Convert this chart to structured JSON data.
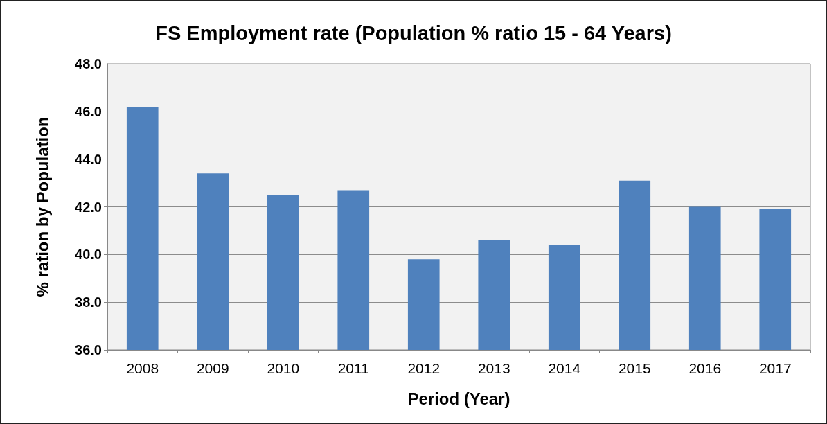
{
  "chart_data": {
    "type": "bar",
    "title": "FS Employment rate (Population % ratio 15 - 64 Years)",
    "xlabel": "Period (Year)",
    "ylabel": "% ration by Population",
    "categories": [
      "2008",
      "2009",
      "2010",
      "2011",
      "2012",
      "2013",
      "2014",
      "2015",
      "2016",
      "2017"
    ],
    "values": [
      46.2,
      43.4,
      42.5,
      42.7,
      39.8,
      40.6,
      40.4,
      43.1,
      42.0,
      41.9
    ],
    "color": "#4f81bd",
    "ylim": [
      36,
      48
    ],
    "yticks": [
      {
        "value": 36,
        "label": "36.0"
      },
      {
        "value": 38,
        "label": "38.0"
      },
      {
        "value": 40,
        "label": "40.0"
      },
      {
        "value": 42,
        "label": "42.0"
      },
      {
        "value": 44,
        "label": "44.0"
      },
      {
        "value": 46,
        "label": "46.0"
      },
      {
        "value": 48,
        "label": "48.0"
      }
    ],
    "grid": "y"
  }
}
